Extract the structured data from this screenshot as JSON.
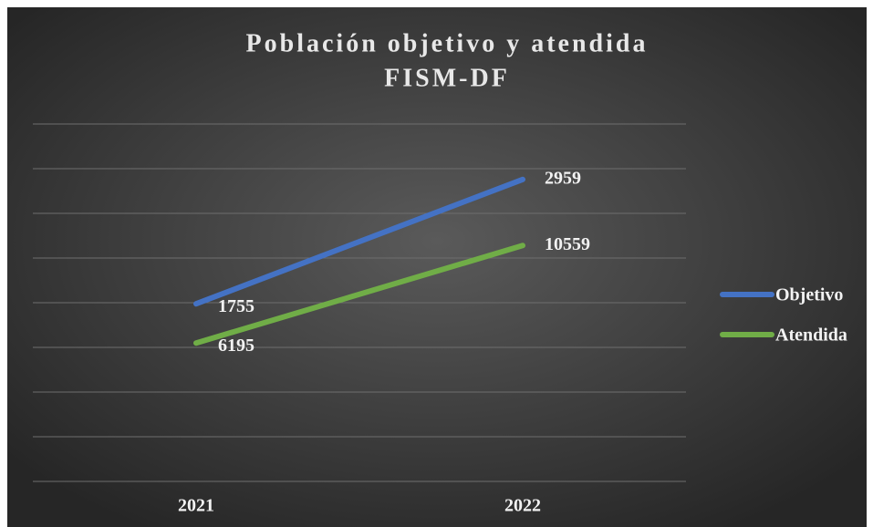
{
  "chart_data": {
    "type": "line",
    "stacked": true,
    "title_lines": [
      "Población objetivo y atendida",
      "FISM-DF"
    ],
    "categories": [
      "2021",
      "2022"
    ],
    "series": [
      {
        "name": "Objetivo",
        "color": "#4472c4",
        "values": [
          1755,
          2959
        ]
      },
      {
        "name": "Atendida",
        "color": "#70ad47",
        "values": [
          6195,
          10559
        ]
      }
    ],
    "ylim": [
      0,
      16000
    ],
    "yticks": [
      0,
      2000,
      4000,
      6000,
      8000,
      10000,
      12000,
      14000,
      16000
    ],
    "grid": true,
    "legend": "right"
  }
}
